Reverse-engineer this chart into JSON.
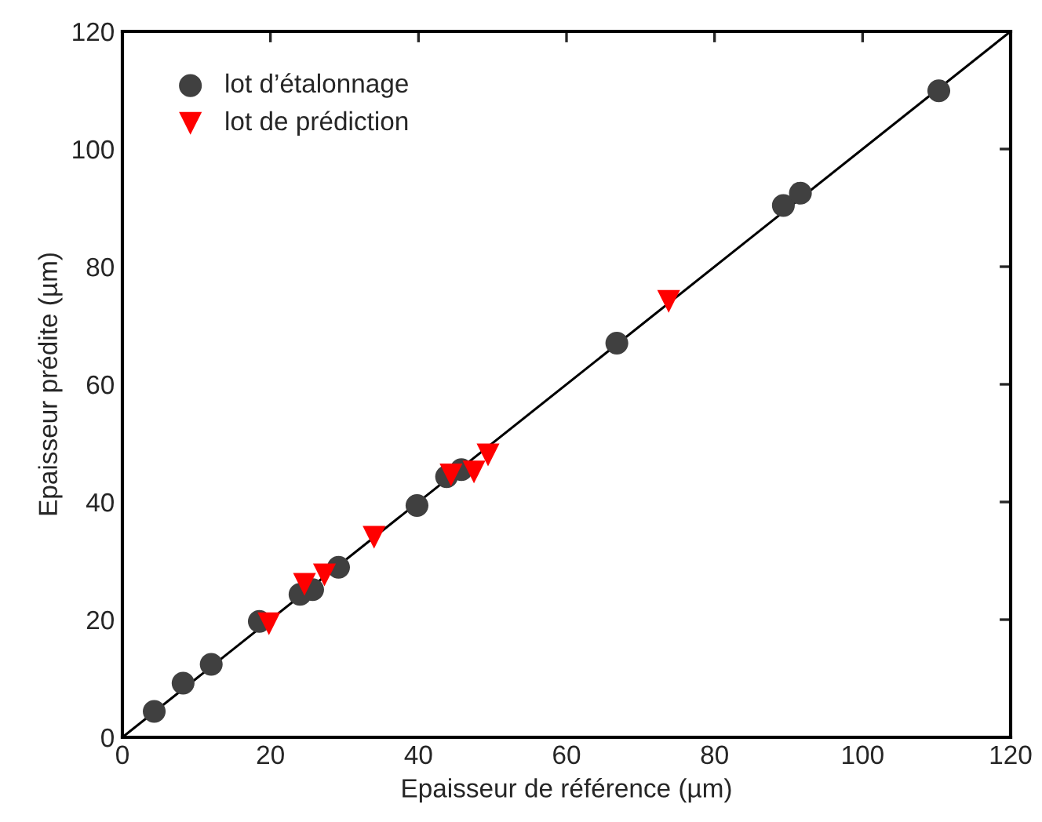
{
  "chart_data": {
    "type": "scatter",
    "xlabel": "Epaisseur de référence (µm)",
    "ylabel": "Epaisseur prédite (µm)",
    "xlim": [
      0,
      120
    ],
    "ylim": [
      0,
      120
    ],
    "xticks": [
      0,
      20,
      40,
      60,
      80,
      100,
      120
    ],
    "yticks": [
      0,
      20,
      40,
      60,
      80,
      100,
      120
    ],
    "grid": false,
    "legend": "top left",
    "series": [
      {
        "type": "line",
        "color": "#000000",
        "x": [
          0,
          120
        ],
        "values": [
          0,
          120
        ],
        "marker": "none",
        "line_style": "solid"
      },
      {
        "name": "lot d’étalonnage",
        "color": "#404040",
        "marker": "circle",
        "x": [
          4.3,
          8.2,
          12.0,
          18.5,
          24.0,
          25.7,
          29.2,
          39.8,
          43.8,
          45.8,
          66.8,
          89.3,
          91.6,
          110.3
        ],
        "values": [
          4.4,
          9.2,
          12.4,
          19.7,
          24.3,
          25.1,
          28.9,
          39.4,
          44.3,
          45.5,
          67.0,
          90.4,
          92.5,
          109.9
        ]
      },
      {
        "name": "lot de prédiction",
        "color": "#ff0000",
        "marker": "triangle",
        "x": [
          19.8,
          24.6,
          27.3,
          34.0,
          44.4,
          47.5,
          49.4,
          73.8
        ],
        "values": [
          19.3,
          26.0,
          27.6,
          34.0,
          44.6,
          45.1,
          48.0,
          74.1
        ]
      }
    ]
  }
}
